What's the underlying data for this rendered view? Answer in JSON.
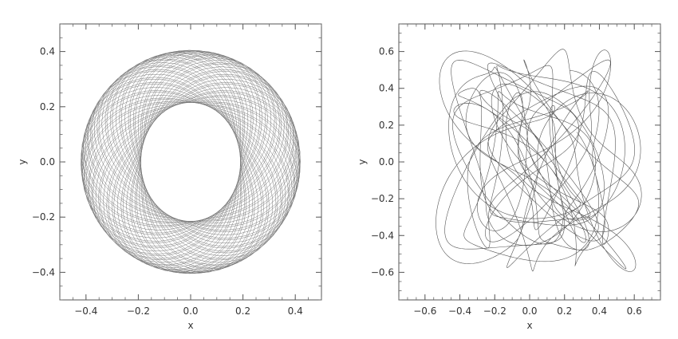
{
  "chart_data": [
    {
      "type": "line",
      "title": "",
      "xlabel": "x",
      "ylabel": "y",
      "xlim": [
        -0.5,
        0.5
      ],
      "ylim": [
        -0.5,
        0.5
      ],
      "xticks": [
        -0.4,
        -0.2,
        0.0,
        0.2,
        0.4
      ],
      "yticks": [
        -0.4,
        -0.2,
        0.0,
        0.2,
        0.4
      ],
      "xtick_labels": [
        "−0.4",
        "−0.2",
        "0.0",
        "0.2",
        "0.4"
      ],
      "ytick_labels": [
        "−0.4",
        "−0.2",
        "0.0",
        "0.2",
        "0.4"
      ],
      "grid": false,
      "line_color": "#707070",
      "series": [
        {
          "description_orbit": "rosette",
          "center": [
            0.0,
            0.0
          ],
          "outer_radius_x": 0.42,
          "outer_radius_y": 0.405,
          "inner_radius_x": 0.19,
          "inner_radius_y": 0.215,
          "sample_count": 2400
        }
      ]
    },
    {
      "type": "line",
      "title": "",
      "xlabel": "x",
      "ylabel": "y",
      "xlim": [
        -0.75,
        0.75
      ],
      "ylim": [
        -0.75,
        0.75
      ],
      "xticks": [
        -0.6,
        -0.4,
        -0.2,
        0.0,
        0.2,
        0.4,
        0.6
      ],
      "yticks": [
        -0.6,
        -0.4,
        -0.2,
        0.0,
        0.2,
        0.4,
        0.6
      ],
      "xtick_labels": [
        "−0.6",
        "−0.4",
        "−0.2",
        "0.0",
        "0.2",
        "0.4",
        "0.6"
      ],
      "ytick_labels": [
        "−0.6",
        "−0.4",
        "−0.2",
        "0.0",
        "0.2",
        "0.4",
        "0.6"
      ],
      "grid": false,
      "line_color": "#555555",
      "series": [
        {
          "description_orbit": "chaotic",
          "x_range": [
            -0.55,
            0.72
          ],
          "y_range": [
            -0.63,
            0.63
          ],
          "sample_count": 3000
        }
      ]
    }
  ]
}
